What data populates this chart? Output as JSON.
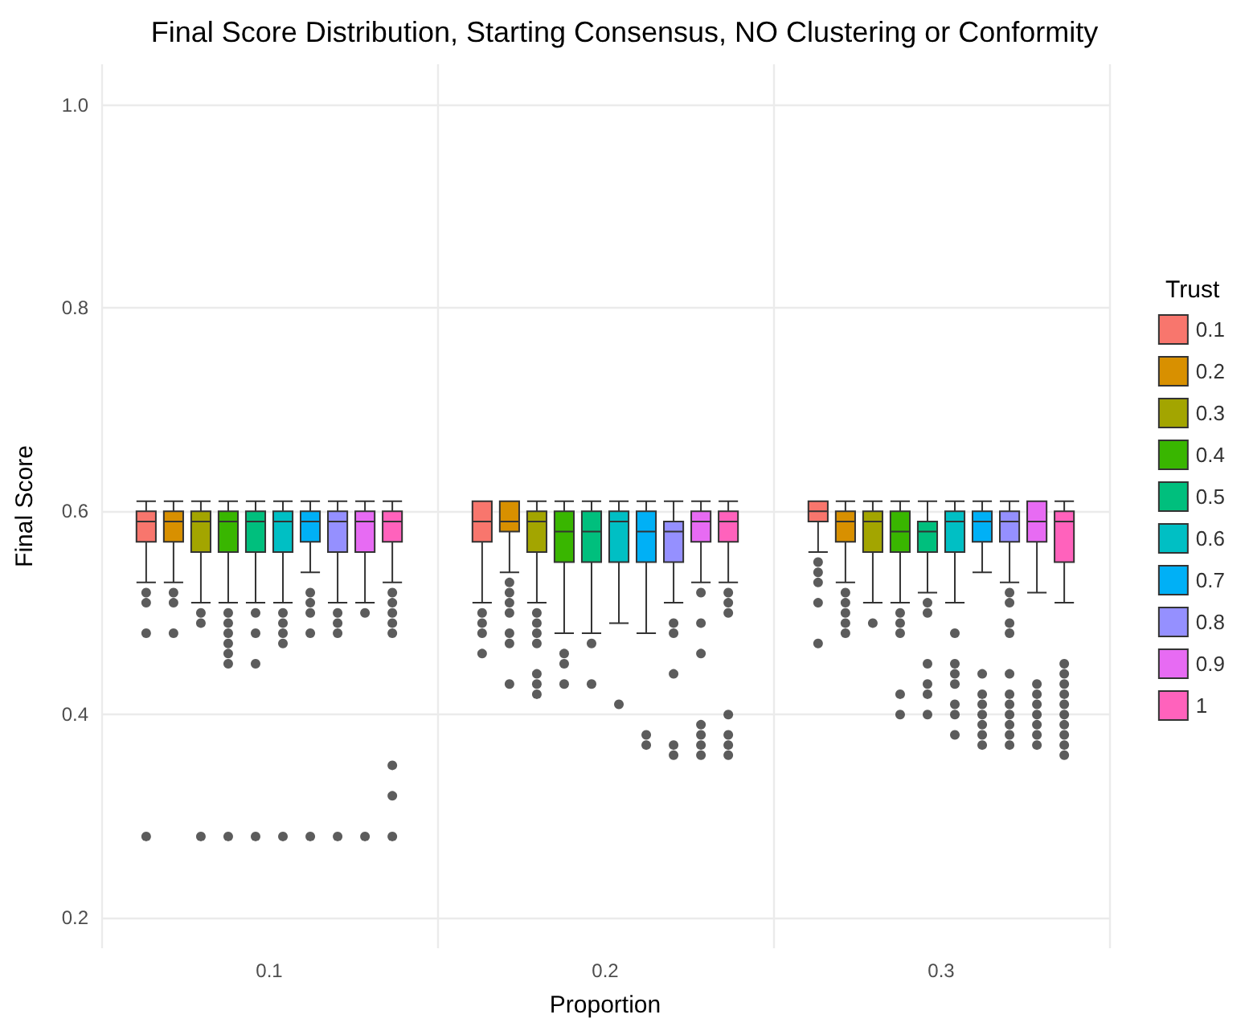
{
  "chart_data": {
    "type": "box",
    "title": "Final Score Distribution, Starting Consensus, NO Clustering or Conformity",
    "xlabel": "Proportion",
    "ylabel": "Final Score",
    "legend_title": "Trust",
    "categories": [
      "0.1",
      "0.2",
      "0.3"
    ],
    "ylim": [
      0.17,
      1.04
    ],
    "yticks": [
      0.2,
      0.4,
      0.6,
      0.8,
      {
        "value": 1,
        "label": "1.0"
      }
    ],
    "grid": true,
    "legend": "right",
    "series": [
      {
        "name": "0.1",
        "color": "#f8766d",
        "boxes": [
          {
            "low": 0.53,
            "q1": 0.57,
            "median": 0.59,
            "q3": 0.6,
            "high": 0.61,
            "outliers": [
              0.52,
              0.51,
              0.48,
              0.28
            ]
          },
          {
            "low": 0.51,
            "q1": 0.57,
            "median": 0.59,
            "q3": 0.61,
            "high": 0.61,
            "outliers": [
              0.5,
              0.49,
              0.48,
              0.46
            ]
          },
          {
            "low": 0.56,
            "q1": 0.59,
            "median": 0.6,
            "q3": 0.61,
            "high": 0.61,
            "outliers": [
              0.55,
              0.54,
              0.53,
              0.51,
              0.47
            ]
          }
        ]
      },
      {
        "name": "0.2",
        "color": "#d89000",
        "boxes": [
          {
            "low": 0.53,
            "q1": 0.57,
            "median": 0.59,
            "q3": 0.6,
            "high": 0.61,
            "outliers": [
              0.52,
              0.51,
              0.48
            ]
          },
          {
            "low": 0.54,
            "q1": 0.58,
            "median": 0.59,
            "q3": 0.61,
            "high": 0.61,
            "outliers": [
              0.53,
              0.52,
              0.51,
              0.5,
              0.48,
              0.47,
              0.43
            ]
          },
          {
            "low": 0.53,
            "q1": 0.57,
            "median": 0.59,
            "q3": 0.6,
            "high": 0.61,
            "outliers": [
              0.52,
              0.51,
              0.5,
              0.49,
              0.48
            ]
          }
        ]
      },
      {
        "name": "0.3",
        "color": "#a3a500",
        "boxes": [
          {
            "low": 0.51,
            "q1": 0.56,
            "median": 0.59,
            "q3": 0.6,
            "high": 0.61,
            "outliers": [
              0.5,
              0.49,
              0.28
            ]
          },
          {
            "low": 0.51,
            "q1": 0.56,
            "median": 0.59,
            "q3": 0.6,
            "high": 0.61,
            "outliers": [
              0.5,
              0.49,
              0.48,
              0.47,
              0.44,
              0.43,
              0.42
            ]
          },
          {
            "low": 0.51,
            "q1": 0.56,
            "median": 0.59,
            "q3": 0.6,
            "high": 0.61,
            "outliers": [
              0.49
            ]
          }
        ]
      },
      {
        "name": "0.4",
        "color": "#39b600",
        "boxes": [
          {
            "low": 0.51,
            "q1": 0.56,
            "median": 0.59,
            "q3": 0.6,
            "high": 0.61,
            "outliers": [
              0.5,
              0.49,
              0.48,
              0.47,
              0.46,
              0.45,
              0.28
            ]
          },
          {
            "low": 0.48,
            "q1": 0.55,
            "median": 0.58,
            "q3": 0.6,
            "high": 0.61,
            "outliers": [
              0.46,
              0.45,
              0.43
            ]
          },
          {
            "low": 0.51,
            "q1": 0.56,
            "median": 0.58,
            "q3": 0.6,
            "high": 0.61,
            "outliers": [
              0.5,
              0.49,
              0.48,
              0.42,
              0.4
            ]
          }
        ]
      },
      {
        "name": "0.5",
        "color": "#00bf7d",
        "boxes": [
          {
            "low": 0.51,
            "q1": 0.56,
            "median": 0.59,
            "q3": 0.6,
            "high": 0.61,
            "outliers": [
              0.5,
              0.48,
              0.45,
              0.28
            ]
          },
          {
            "low": 0.48,
            "q1": 0.55,
            "median": 0.58,
            "q3": 0.6,
            "high": 0.61,
            "outliers": [
              0.47,
              0.43
            ]
          },
          {
            "low": 0.52,
            "q1": 0.56,
            "median": 0.58,
            "q3": 0.59,
            "high": 0.61,
            "outliers": [
              0.51,
              0.5,
              0.45,
              0.43,
              0.42,
              0.4
            ]
          }
        ]
      },
      {
        "name": "0.6",
        "color": "#00bfc4",
        "boxes": [
          {
            "low": 0.51,
            "q1": 0.56,
            "median": 0.59,
            "q3": 0.6,
            "high": 0.61,
            "outliers": [
              0.5,
              0.49,
              0.48,
              0.47,
              0.28
            ]
          },
          {
            "low": 0.49,
            "q1": 0.55,
            "median": 0.59,
            "q3": 0.6,
            "high": 0.61,
            "outliers": [
              0.41
            ]
          },
          {
            "low": 0.51,
            "q1": 0.56,
            "median": 0.59,
            "q3": 0.6,
            "high": 0.61,
            "outliers": [
              0.48,
              0.45,
              0.44,
              0.43,
              0.41,
              0.4,
              0.38
            ]
          }
        ]
      },
      {
        "name": "0.7",
        "color": "#00b0f6",
        "boxes": [
          {
            "low": 0.54,
            "q1": 0.57,
            "median": 0.59,
            "q3": 0.6,
            "high": 0.61,
            "outliers": [
              0.52,
              0.51,
              0.5,
              0.48,
              0.28
            ]
          },
          {
            "low": 0.48,
            "q1": 0.55,
            "median": 0.58,
            "q3": 0.6,
            "high": 0.61,
            "outliers": [
              0.38,
              0.37
            ]
          },
          {
            "low": 0.54,
            "q1": 0.57,
            "median": 0.59,
            "q3": 0.6,
            "high": 0.61,
            "outliers": [
              0.44,
              0.42,
              0.41,
              0.4,
              0.39,
              0.38,
              0.37
            ]
          }
        ]
      },
      {
        "name": "0.8",
        "color": "#9590ff",
        "boxes": [
          {
            "low": 0.51,
            "q1": 0.56,
            "median": 0.59,
            "q3": 0.6,
            "high": 0.61,
            "outliers": [
              0.5,
              0.49,
              0.48,
              0.28
            ]
          },
          {
            "low": 0.51,
            "q1": 0.55,
            "median": 0.58,
            "q3": 0.59,
            "high": 0.61,
            "outliers": [
              0.49,
              0.48,
              0.44,
              0.37,
              0.36
            ]
          },
          {
            "low": 0.53,
            "q1": 0.57,
            "median": 0.59,
            "q3": 0.6,
            "high": 0.61,
            "outliers": [
              0.52,
              0.51,
              0.49,
              0.48,
              0.44,
              0.42,
              0.41,
              0.4,
              0.39,
              0.38,
              0.37
            ]
          }
        ]
      },
      {
        "name": "0.9",
        "color": "#e76bf3",
        "boxes": [
          {
            "low": 0.51,
            "q1": 0.56,
            "median": 0.59,
            "q3": 0.6,
            "high": 0.61,
            "outliers": [
              0.5,
              0.28
            ]
          },
          {
            "low": 0.53,
            "q1": 0.57,
            "median": 0.59,
            "q3": 0.6,
            "high": 0.61,
            "outliers": [
              0.52,
              0.49,
              0.46,
              0.39,
              0.38,
              0.37,
              0.36
            ]
          },
          {
            "low": 0.52,
            "q1": 0.57,
            "median": 0.59,
            "q3": 0.61,
            "high": 0.61,
            "outliers": [
              0.43,
              0.42,
              0.41,
              0.4,
              0.39,
              0.38,
              0.37
            ]
          }
        ]
      },
      {
        "name": "1",
        "color": "#ff62bc",
        "boxes": [
          {
            "low": 0.53,
            "q1": 0.57,
            "median": 0.59,
            "q3": 0.6,
            "high": 0.61,
            "outliers": [
              0.52,
              0.51,
              0.5,
              0.49,
              0.48,
              0.35,
              0.32,
              0.28
            ]
          },
          {
            "low": 0.53,
            "q1": 0.57,
            "median": 0.59,
            "q3": 0.6,
            "high": 0.61,
            "outliers": [
              0.52,
              0.51,
              0.5,
              0.4,
              0.38,
              0.37,
              0.36
            ]
          },
          {
            "low": 0.51,
            "q1": 0.55,
            "median": 0.59,
            "q3": 0.6,
            "high": 0.61,
            "outliers": [
              0.45,
              0.44,
              0.43,
              0.42,
              0.41,
              0.4,
              0.39,
              0.38,
              0.37,
              0.36
            ]
          }
        ]
      }
    ]
  }
}
